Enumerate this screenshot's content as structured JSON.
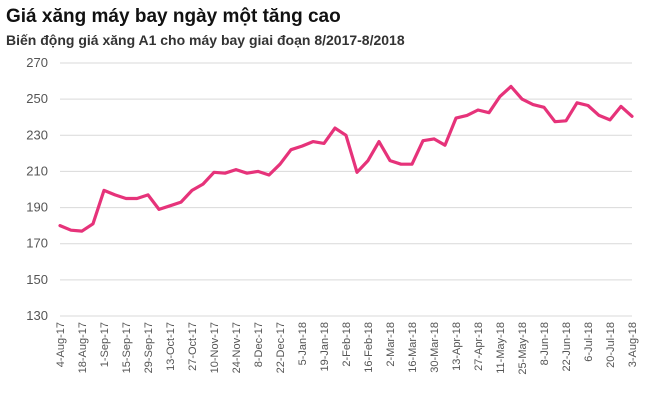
{
  "chart_data": {
    "type": "line",
    "title": "Giá xăng máy bay ngày một tăng cao",
    "subtitle": "Biến động giá xăng A1 cho máy bay giai đoạn 8/2017-8/2018",
    "xlabel": "",
    "ylabel": "",
    "ylim": [
      130,
      270
    ],
    "yticks": [
      130,
      150,
      170,
      190,
      210,
      230,
      250,
      270
    ],
    "grid": true,
    "color": "#e6337a",
    "xtick_labels": [
      "4-Aug-17",
      "18-Aug-17",
      "1-Sep-17",
      "15-Sep-17",
      "29-Sep-17",
      "13-Oct-17",
      "27-Oct-17",
      "10-Nov-17",
      "24-Nov-17",
      "8-Dec-17",
      "22-Dec-17",
      "5-Jan-18",
      "19-Jan-18",
      "2-Feb-18",
      "16-Feb-18",
      "2-Mar-18",
      "16-Mar-18",
      "30-Mar-18",
      "13-Apr-18",
      "27-Apr-18",
      "11-May-18",
      "25-May-18",
      "8-Jun-18",
      "22-Jun-18",
      "6-Jul-18",
      "20-Jul-18",
      "3-Aug-18"
    ],
    "x": [
      "4-Aug-17",
      "11-Aug-17",
      "18-Aug-17",
      "25-Aug-17",
      "1-Sep-17",
      "8-Sep-17",
      "15-Sep-17",
      "22-Sep-17",
      "29-Sep-17",
      "6-Oct-17",
      "13-Oct-17",
      "20-Oct-17",
      "27-Oct-17",
      "3-Nov-17",
      "10-Nov-17",
      "17-Nov-17",
      "24-Nov-17",
      "1-Dec-17",
      "8-Dec-17",
      "15-Dec-17",
      "22-Dec-17",
      "29-Dec-17",
      "5-Jan-18",
      "12-Jan-18",
      "19-Jan-18",
      "26-Jan-18",
      "2-Feb-18",
      "9-Feb-18",
      "16-Feb-18",
      "23-Feb-18",
      "2-Mar-18",
      "9-Mar-18",
      "16-Mar-18",
      "23-Mar-18",
      "30-Mar-18",
      "6-Apr-18",
      "13-Apr-18",
      "20-Apr-18",
      "27-Apr-18",
      "4-May-18",
      "11-May-18",
      "18-May-18",
      "25-May-18",
      "1-Jun-18",
      "8-Jun-18",
      "15-Jun-18",
      "22-Jun-18",
      "29-Jun-18",
      "6-Jul-18",
      "13-Jul-18",
      "20-Jul-18",
      "27-Jul-18",
      "3-Aug-18"
    ],
    "series": [
      {
        "values": [
          180,
          177.5,
          177,
          181,
          199.5,
          197,
          195,
          195,
          197,
          189,
          191,
          193,
          199.5,
          203,
          209.5,
          209,
          211,
          209,
          210,
          208,
          214,
          222,
          224,
          226.5,
          225.5,
          234,
          230,
          209.5,
          216,
          226.5,
          216,
          214,
          214,
          227,
          228,
          224.5,
          239.5,
          241,
          244,
          242.5,
          251.5,
          257,
          250,
          247,
          245.5,
          237.5,
          238,
          248,
          246.5,
          241,
          238.5,
          246,
          240.5
        ]
      }
    ]
  }
}
